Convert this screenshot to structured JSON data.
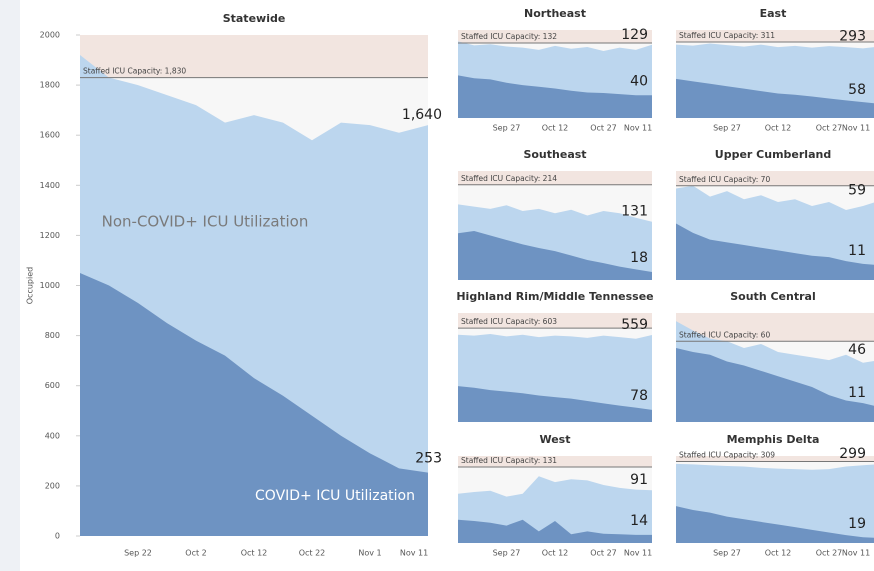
{
  "chart_data": [
    {
      "type": "area",
      "title": "Statewide",
      "y_label": "Occupied",
      "categories": [
        null,
        null,
        "Sep 22",
        null,
        "Oct 2",
        null,
        "Oct 12",
        null,
        "Oct 22",
        null,
        "Nov 1",
        null,
        "Nov 11"
      ],
      "ylim": [
        0,
        2000
      ],
      "yticks": [
        0,
        200,
        400,
        600,
        800,
        1000,
        1200,
        1400,
        1600,
        1800,
        2000
      ],
      "capacity": {
        "value": 1830,
        "label": "Staffed ICU Capacity: 1,830"
      },
      "series": [
        {
          "name": "Non-COVID+ ICU Utilization",
          "color": "#bcd6ee",
          "values": [
            1920,
            1830,
            1800,
            1760,
            1720,
            1650,
            1680,
            1650,
            1580,
            1650,
            1640,
            1610,
            1640
          ],
          "value_labels": [
            null,
            null,
            null,
            null,
            null,
            null,
            null,
            null,
            null,
            null,
            null,
            null,
            "1,640"
          ]
        },
        {
          "name": "COVID+ ICU Utilization",
          "color": "#6e93c2",
          "values": [
            1050,
            1000,
            930,
            850,
            780,
            720,
            630,
            560,
            480,
            400,
            330,
            270,
            253
          ]
        }
      ]
    },
    {
      "type": "area",
      "title": "Northeast",
      "categories": [
        null,
        null,
        null,
        "Sep 27",
        null,
        null,
        "Oct 12",
        null,
        null,
        "Oct 27",
        null,
        null,
        "Nov 11"
      ],
      "ylim": [
        0,
        155
      ],
      "capacity": {
        "value": 132,
        "label": "Staffed ICU Capacity: 132"
      },
      "series": [
        {
          "color": "#bcd6ee",
          "values": [
            135,
            128,
            130,
            126,
            124,
            120,
            127,
            122,
            125,
            118,
            124,
            120,
            129
          ]
        },
        {
          "color": "#6e93c2",
          "values": [
            75,
            70,
            68,
            62,
            58,
            55,
            52,
            48,
            45,
            44,
            42,
            40,
            40
          ]
        }
      ]
    },
    {
      "type": "area",
      "title": "East",
      "categories": [
        null,
        null,
        null,
        "Sep 27",
        null,
        null,
        "Oct 12",
        null,
        null,
        "Oct 27",
        null,
        null,
        "Nov 11"
      ],
      "ylim": [
        0,
        360
      ],
      "capacity": {
        "value": 311,
        "label": "Staffed ICU Capacity: 311"
      },
      "series": [
        {
          "color": "#bcd6ee",
          "values": [
            300,
            296,
            305,
            298,
            292,
            300,
            290,
            295,
            288,
            294,
            290,
            285,
            293
          ]
        },
        {
          "color": "#6e93c2",
          "values": [
            160,
            150,
            140,
            130,
            120,
            110,
            100,
            95,
            88,
            80,
            72,
            65,
            58
          ]
        }
      ]
    },
    {
      "type": "area",
      "title": "Southeast",
      "ylim": [
        0,
        245
      ],
      "capacity": {
        "value": 214,
        "label": "Staffed ICU Capacity: 214"
      },
      "series": [
        {
          "color": "#bcd6ee",
          "values": [
            170,
            165,
            160,
            168,
            155,
            160,
            150,
            158,
            145,
            155,
            150,
            140,
            131
          ]
        },
        {
          "color": "#6e93c2",
          "values": [
            105,
            110,
            100,
            90,
            80,
            72,
            65,
            55,
            45,
            38,
            30,
            24,
            18
          ]
        }
      ]
    },
    {
      "type": "area",
      "title": "Upper Cumberland",
      "ylim": [
        0,
        81
      ],
      "capacity": {
        "value": 70,
        "label": "Staffed ICU Capacity: 70"
      },
      "series": [
        {
          "color": "#bcd6ee",
          "values": [
            68,
            70,
            62,
            66,
            60,
            63,
            58,
            60,
            55,
            58,
            52,
            55,
            59
          ]
        },
        {
          "color": "#6e93c2",
          "values": [
            42,
            35,
            30,
            28,
            26,
            24,
            22,
            20,
            18,
            17,
            14,
            12,
            11
          ]
        }
      ]
    },
    {
      "type": "area",
      "title": "Highland Rim/Middle Tennessee",
      "ylim": [
        0,
        700
      ],
      "capacity": {
        "value": 603,
        "label": "Staffed ICU Capacity: 603"
      },
      "series": [
        {
          "color": "#bcd6ee",
          "values": [
            560,
            555,
            565,
            550,
            560,
            545,
            555,
            550,
            540,
            555,
            545,
            535,
            559
          ]
        },
        {
          "color": "#6e93c2",
          "values": [
            230,
            220,
            205,
            195,
            185,
            170,
            160,
            150,
            135,
            120,
            105,
            92,
            78
          ]
        }
      ]
    },
    {
      "type": "area",
      "title": "South Central",
      "ylim": [
        0,
        81
      ],
      "capacity": {
        "value": 60,
        "label": "Staffed ICU Capacity: 60"
      },
      "series": [
        {
          "color": "#bcd6ee",
          "values": [
            75,
            68,
            62,
            60,
            55,
            58,
            52,
            50,
            48,
            46,
            50,
            44,
            46
          ]
        },
        {
          "color": "#6e93c2",
          "values": [
            55,
            52,
            50,
            45,
            42,
            38,
            34,
            30,
            26,
            20,
            16,
            14,
            11
          ]
        }
      ]
    },
    {
      "type": "area",
      "title": "West",
      "categories": [
        null,
        null,
        null,
        "Sep 27",
        null,
        null,
        "Oct 12",
        null,
        null,
        "Oct 27",
        null,
        null,
        "Nov 11"
      ],
      "ylim": [
        0,
        150
      ],
      "capacity": {
        "value": 131,
        "label": "Staffed ICU Capacity: 131"
      },
      "series": [
        {
          "color": "#bcd6ee",
          "values": [
            85,
            88,
            90,
            80,
            85,
            115,
            105,
            110,
            108,
            100,
            95,
            92,
            91
          ]
        },
        {
          "color": "#6e93c2",
          "values": [
            40,
            38,
            35,
            30,
            40,
            20,
            38,
            15,
            20,
            16,
            15,
            14,
            14
          ]
        }
      ]
    },
    {
      "type": "area",
      "title": "Memphis Delta",
      "categories": [
        null,
        null,
        null,
        "Sep 27",
        null,
        null,
        "Oct 12",
        null,
        null,
        "Oct 27",
        null,
        null,
        "Nov 11"
      ],
      "ylim": [
        0,
        330
      ],
      "capacity": {
        "value": 309,
        "label": "Staffed ICU Capacity: 309"
      },
      "series": [
        {
          "color": "#bcd6ee",
          "values": [
            300,
            298,
            295,
            292,
            290,
            285,
            282,
            280,
            278,
            280,
            290,
            295,
            299
          ]
        },
        {
          "color": "#6e93c2",
          "values": [
            140,
            125,
            115,
            100,
            90,
            80,
            70,
            60,
            50,
            40,
            30,
            22,
            19
          ]
        }
      ]
    }
  ]
}
